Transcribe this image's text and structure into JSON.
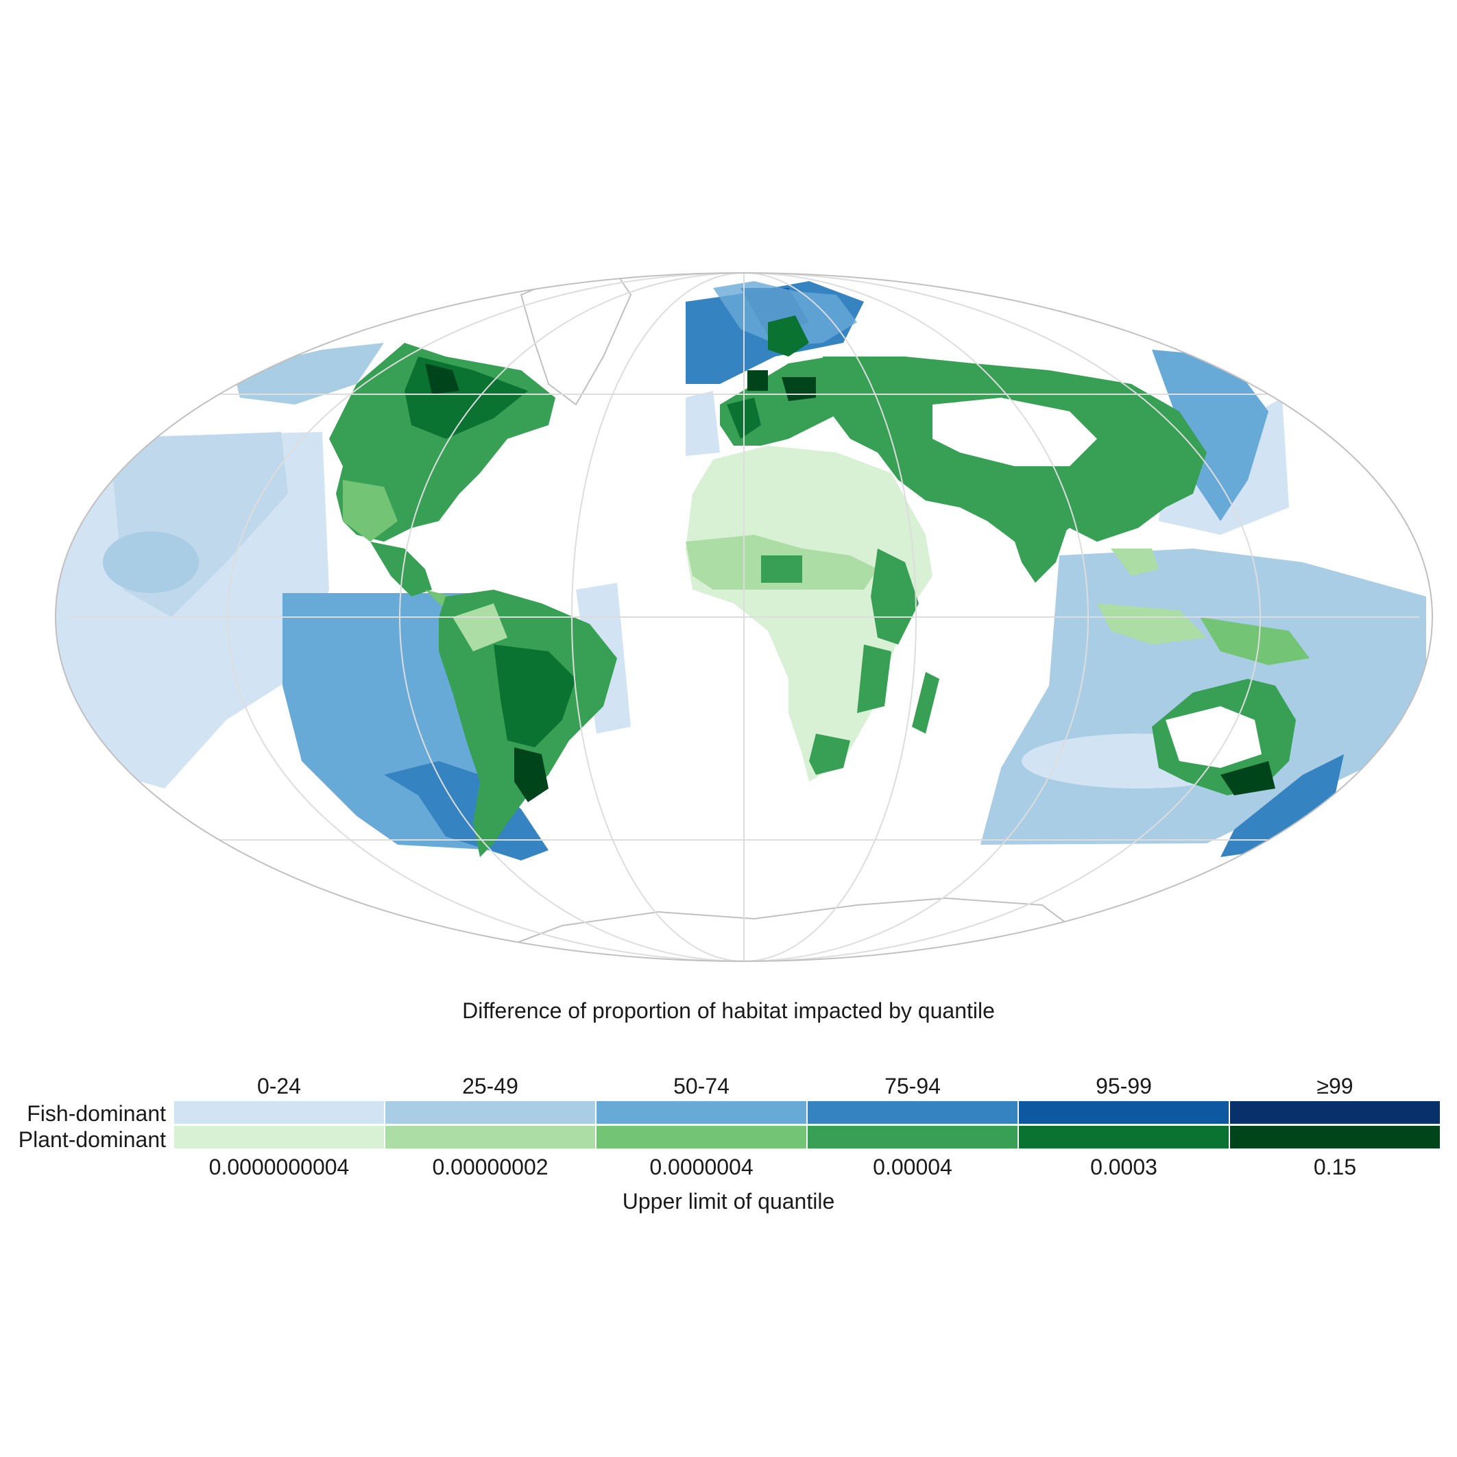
{
  "legend": {
    "title": "Difference of proportion of habitat impacted by quantile",
    "subtitle": "Upper limit of quantile",
    "fish_label": "Fish-dominant",
    "plant_label": "Plant-dominant",
    "quantiles": [
      "0-24",
      "25-49",
      "50-74",
      "75-94",
      "95-99",
      "≥99"
    ],
    "upper_limits": [
      "0.0000000004",
      "0.00000002",
      "0.0000004",
      "0.00004",
      "0.0003",
      "0.15"
    ],
    "fish_colors": [
      "#d2e3f3",
      "#a9cde4",
      "#68aad7",
      "#3584c1",
      "#0e58a2",
      "#08306b"
    ],
    "plant_colors": [
      "#d8f0d3",
      "#abdda5",
      "#74c476",
      "#37a055",
      "#0a7331",
      "#00441b"
    ]
  },
  "map": {
    "projection": "mollweide",
    "graticule": true,
    "ocean_color": "#ffffff",
    "outline_color": "#c0c0c0"
  }
}
